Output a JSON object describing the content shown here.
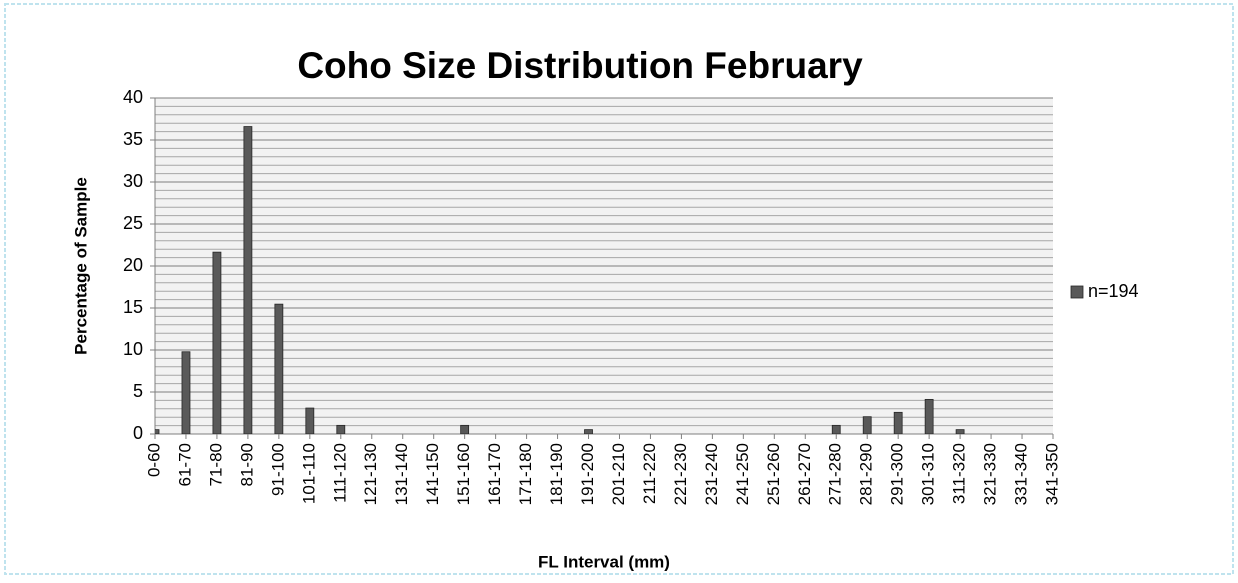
{
  "chart_data": {
    "type": "bar",
    "title": "Coho Size Distribution February",
    "x_label": "FL Interval (mm)",
    "y_label": "Percentage of Sample",
    "categories": [
      "0-60",
      "61-70",
      "71-80",
      "81-90",
      "91-100",
      "101-110",
      "111-120",
      "121-130",
      "131-140",
      "141-150",
      "151-160",
      "161-170",
      "171-180",
      "181-190",
      "191-200",
      "201-210",
      "211-220",
      "221-230",
      "231-240",
      "241-250",
      "251-260",
      "261-270",
      "271-280",
      "281-290",
      "291-300",
      "301-310",
      "311-320",
      "321-330",
      "331-340",
      "341-350"
    ],
    "series": [
      {
        "name": "n=194",
        "color": "#595959",
        "values": [
          0.52,
          9.79,
          21.65,
          36.6,
          15.46,
          3.09,
          1.03,
          0,
          0,
          0,
          1.03,
          0,
          0,
          0,
          0.52,
          0,
          0,
          0,
          0,
          0,
          0,
          0,
          1.03,
          2.06,
          2.58,
          4.12,
          0.52,
          0,
          0,
          0
        ]
      }
    ],
    "ylim": [
      0,
      40
    ],
    "yticks": [
      0,
      5,
      10,
      15,
      20,
      25,
      30,
      35,
      40
    ],
    "grid": true,
    "minor_grid": 1,
    "legend": "right"
  }
}
